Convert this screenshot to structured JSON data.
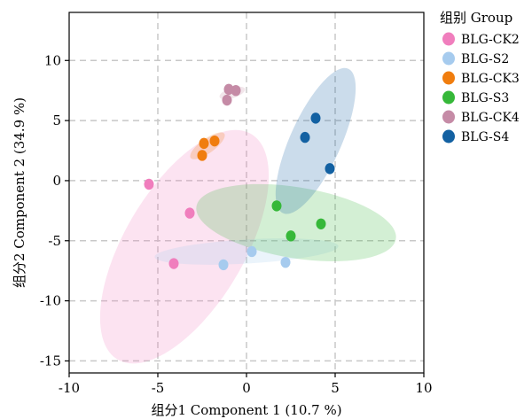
{
  "chart_data": {
    "type": "scatter",
    "xlabel": "组分1 Component 1 (10.7 %)",
    "ylabel": "组分2 Component 2 (34.9 %)",
    "xlim": [
      -10,
      10
    ],
    "ylim": [
      -16,
      14
    ],
    "xticks": [
      -10,
      -5,
      0,
      5,
      10
    ],
    "yticks": [
      -15,
      -10,
      -5,
      0,
      5,
      10
    ],
    "grid": true,
    "legend_title": "组别 Group",
    "legend_position": "top-right, outside plot",
    "series": [
      {
        "name": "BLG-CK2",
        "color": "#f07ebd",
        "points": [
          [
            -5.5,
            -0.3
          ],
          [
            -3.2,
            -2.7
          ],
          [
            -4.1,
            -6.9
          ]
        ],
        "ellipse": {
          "cx": -3.5,
          "cy": -5.5,
          "rx": 10.2,
          "ry": 3.6,
          "angle_deg": 71
        }
      },
      {
        "name": "BLG-S2",
        "color": "#a6cbee",
        "points": [
          [
            -1.3,
            -7.0
          ],
          [
            0.3,
            -5.9
          ],
          [
            2.2,
            -6.8
          ]
        ],
        "ellipse": {
          "cx": 0.0,
          "cy": -5.9,
          "rx": 5.2,
          "ry": 1.0,
          "angle_deg": 5
        }
      },
      {
        "name": "BLG-CK3",
        "color": "#f07d0e",
        "points": [
          [
            -2.4,
            3.1
          ],
          [
            -1.8,
            3.3
          ],
          [
            -2.5,
            2.1
          ]
        ],
        "ellipse": {
          "cx": -2.2,
          "cy": 2.9,
          "rx": 1.4,
          "ry": 0.5,
          "angle_deg": 50
        }
      },
      {
        "name": "BLG-S3",
        "color": "#36b839",
        "points": [
          [
            1.7,
            -2.1
          ],
          [
            4.2,
            -3.6
          ],
          [
            2.5,
            -4.6
          ]
        ],
        "ellipse": {
          "cx": 2.8,
          "cy": -3.5,
          "rx": 5.8,
          "ry": 2.9,
          "angle_deg": -16
        }
      },
      {
        "name": "BLG-CK4",
        "color": "#c58ba6",
        "points": [
          [
            -1.0,
            7.6
          ],
          [
            -0.6,
            7.5
          ],
          [
            -1.1,
            6.7
          ]
        ],
        "ellipse": {
          "cx": -0.8,
          "cy": 7.3,
          "rx": 0.8,
          "ry": 0.4,
          "angle_deg": 30
        }
      },
      {
        "name": "BLG-S4",
        "color": "#1361a2",
        "points": [
          [
            3.9,
            5.2
          ],
          [
            3.3,
            3.6
          ],
          [
            4.7,
            1.0
          ]
        ],
        "ellipse": {
          "cx": 3.9,
          "cy": 3.3,
          "rx": 6.3,
          "ry": 1.5,
          "angle_deg": 74
        }
      }
    ]
  }
}
